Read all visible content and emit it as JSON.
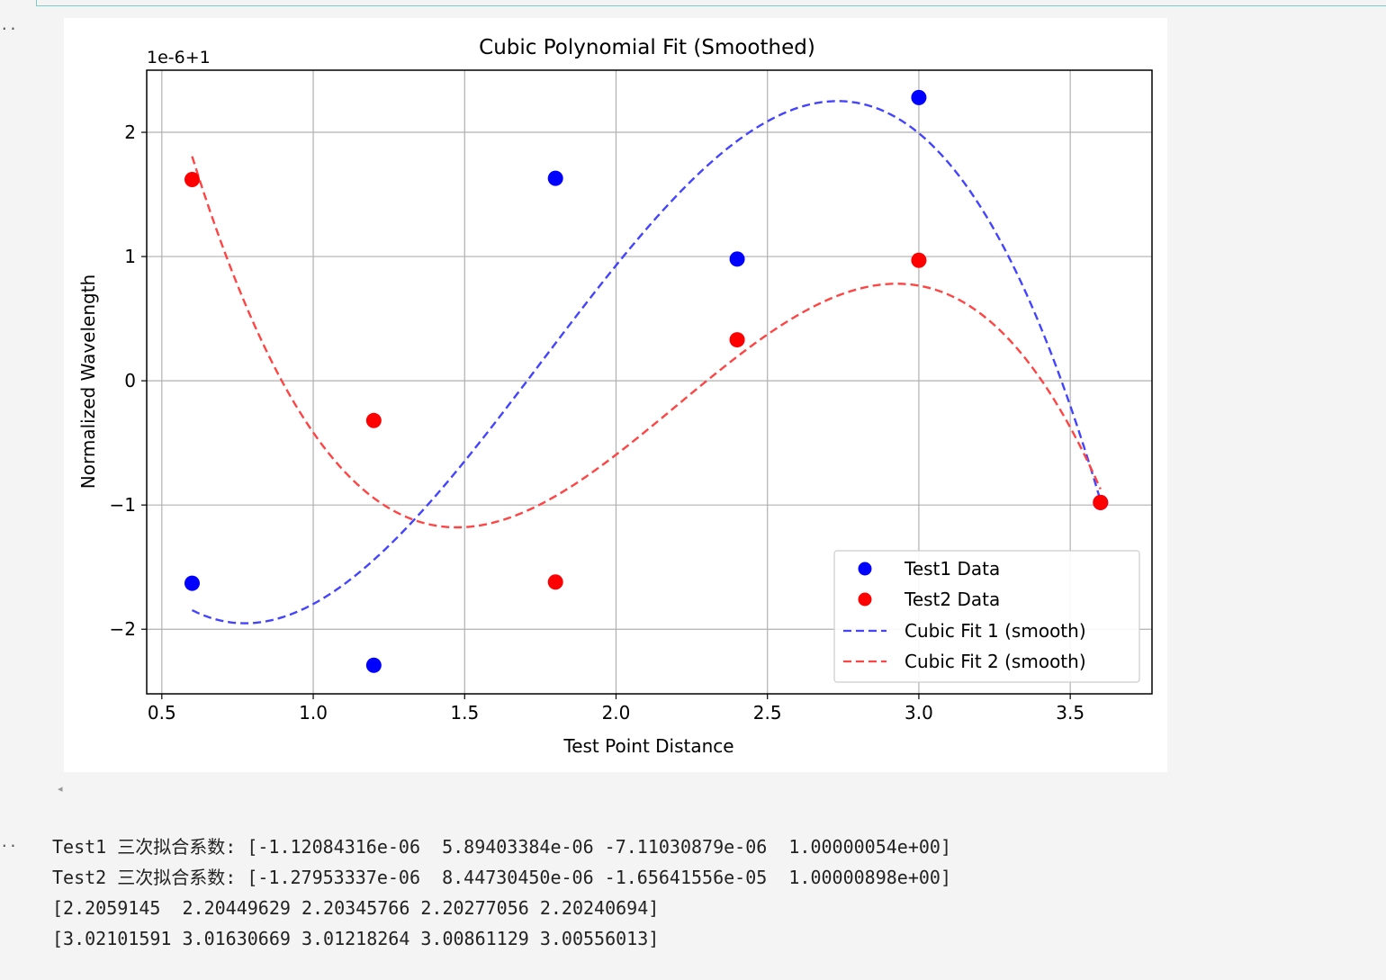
{
  "notebook": {
    "prompt_marker": "..",
    "output_lines": [
      "Test1 三次拟合系数: [-1.12084316e-06  5.89403384e-06 -7.11030879e-06  1.00000054e+00]",
      "Test2 三次拟合系数: [-1.27953337e-06  8.44730450e-06 -1.65641556e-05  1.00000898e+00]",
      "[2.2059145  2.20449629 2.20345766 2.20277056 2.20240694]",
      "[3.02101591 3.01630669 3.01218264 3.00861129 3.00556013]"
    ],
    "colors": {
      "background": "#f4f4f4",
      "input_border": "#7dc9c9"
    }
  },
  "chart_data": {
    "type": "scatter",
    "title": "Cubic Polynomial Fit (Smoothed)",
    "xlabel": "Test Point Distance",
    "ylabel": "Normalized Wavelength",
    "offset_text": "1e-6+1",
    "xlim": [
      0.45,
      3.77
    ],
    "ylim": [
      -2.52,
      2.5
    ],
    "x_ticks": [
      0.5,
      1.0,
      1.5,
      2.0,
      2.5,
      3.0,
      3.5
    ],
    "x_tick_labels": [
      "0.5",
      "1.0",
      "1.5",
      "2.0",
      "2.5",
      "3.0",
      "3.5"
    ],
    "y_ticks": [
      -2,
      -1,
      0,
      1,
      2
    ],
    "y_tick_labels": [
      "−2",
      "−1",
      "0",
      "1",
      "2"
    ],
    "grid": true,
    "legend_position": "lower right",
    "series": [
      {
        "name": "Test1 Data",
        "kind": "scatter",
        "color": "#0000ff",
        "x": [
          0.6,
          1.2,
          1.8,
          2.4,
          3.0,
          3.6
        ],
        "y": [
          -1.63,
          -2.29,
          1.63,
          0.98,
          2.28,
          -0.98
        ]
      },
      {
        "name": "Test2 Data",
        "kind": "scatter",
        "color": "#ff0000",
        "x": [
          0.6,
          1.2,
          1.8,
          2.4,
          3.0,
          3.6
        ],
        "y": [
          1.62,
          -0.32,
          -1.62,
          0.33,
          0.97,
          -0.98
        ]
      },
      {
        "name": "Cubic Fit 1 (smooth)",
        "kind": "line",
        "style": "dashed",
        "color": "#4444ff",
        "x_range": [
          0.6,
          3.6
        ],
        "coefficients": [
          -1.12084316,
          5.89403384,
          -7.11030879,
          0.54
        ]
      },
      {
        "name": "Cubic Fit 2 (smooth)",
        "kind": "line",
        "style": "dashed",
        "color": "#ff4444",
        "x_range": [
          0.6,
          3.6
        ],
        "coefficients": [
          -1.27953337,
          8.4473045,
          -16.5641556,
          8.98
        ]
      }
    ]
  }
}
